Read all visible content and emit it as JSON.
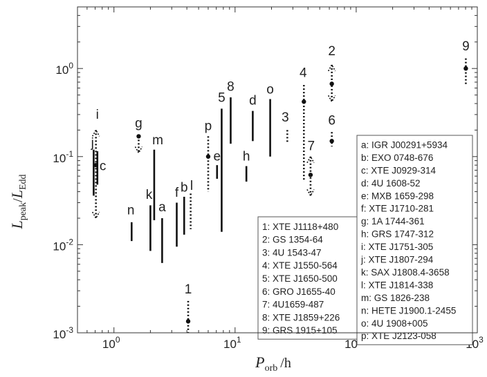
{
  "chart_data": {
    "type": "scatter",
    "xscale": "log",
    "yscale": "log",
    "xlim": [
      0.5,
      1000
    ],
    "ylim": [
      0.001,
      5
    ],
    "xlabel": {
      "main": "P",
      "sub": "orb",
      "unit": "/h"
    },
    "ylabel": {
      "num": "L",
      "num_sub": "peak",
      "sep": "/",
      "den": "L",
      "den_sub": "Edd"
    },
    "x_ticks": [
      {
        "value": 1,
        "base": "10",
        "exp": "0"
      },
      {
        "value": 10,
        "base": "10",
        "exp": "1"
      },
      {
        "value": 100,
        "base": "10",
        "exp": "2"
      },
      {
        "value": 1000,
        "base": "10",
        "exp": "3"
      }
    ],
    "y_ticks": [
      {
        "value": 0.001,
        "base": "10",
        "exp": "-3"
      },
      {
        "value": 0.01,
        "base": "10",
        "exp": "-2"
      },
      {
        "value": 0.1,
        "base": "10",
        "exp": "-1"
      },
      {
        "value": 1,
        "base": "10",
        "exp": "0"
      }
    ],
    "grid": false,
    "sources": [
      {
        "label": "a",
        "x": 2.5,
        "y_low": 0.0062,
        "y_high": 0.02,
        "style": "solid"
      },
      {
        "label": "b",
        "x": 3.8,
        "y_low": 0.013,
        "y_high": 0.035,
        "style": "solid"
      },
      {
        "label": "c",
        "x": 0.73,
        "y_low": 0.048,
        "y_high": 0.115,
        "style": "solid"
      },
      {
        "label": "d",
        "x": 14,
        "y_low": 0.15,
        "y_high": 0.33,
        "style": "solid"
      },
      {
        "label": "e",
        "x": 7.1,
        "y_low": 0.056,
        "y_high": 0.08,
        "style": "solid"
      },
      {
        "label": "f",
        "x": 3.3,
        "y_low": 0.0095,
        "y_high": 0.03,
        "style": "solid"
      },
      {
        "label": "g",
        "x": 1.6,
        "y_low": 0.11,
        "y_high": 0.17,
        "style": "dotted",
        "point": 0.17,
        "arrow": "down"
      },
      {
        "label": "h",
        "x": 12.4,
        "y_low": 0.052,
        "y_high": 0.078,
        "style": "solid"
      },
      {
        "label": "i",
        "x": 0.71,
        "y_low": 0.02,
        "y_high": 0.2,
        "style": "dotted",
        "point": 0.08,
        "arrow": "both"
      },
      {
        "label": "j",
        "x": 0.68,
        "y_low": 0.036,
        "y_high": 0.12,
        "style": "solid"
      },
      {
        "label": "k",
        "x": 2.0,
        "y_low": 0.0085,
        "y_high": 0.028,
        "style": "solid"
      },
      {
        "label": "l",
        "x": 4.3,
        "y_low": 0.015,
        "y_high": 0.038,
        "style": "dotted"
      },
      {
        "label": "m",
        "x": 2.15,
        "y_low": 0.019,
        "y_high": 0.12,
        "style": "solid"
      },
      {
        "label": "n",
        "x": 1.4,
        "y_low": 0.011,
        "y_high": 0.018,
        "style": "solid"
      },
      {
        "label": "o",
        "x": 19.5,
        "y_low": 0.1,
        "y_high": 0.45,
        "style": "solid"
      },
      {
        "label": "p",
        "x": 6.0,
        "y_low": 0.04,
        "y_high": 0.17,
        "style": "dotted",
        "point": 0.1
      },
      {
        "label": "1",
        "x": 4.1,
        "y_low": 0.001,
        "y_high": 0.0023,
        "style": "dotted",
        "point": 0.00135,
        "extend_bottom": true
      },
      {
        "label": "2",
        "x": 62.9,
        "y_low": 0.42,
        "y_high": 1.1,
        "style": "dotted",
        "point": 0.67,
        "arrow": "both"
      },
      {
        "label": "3",
        "x": 27,
        "y_low": 0.14,
        "y_high": 0.2,
        "style": "dotted"
      },
      {
        "label": "4",
        "x": 37,
        "y_low": 0.052,
        "y_high": 0.65,
        "style": "dotted",
        "point": 0.42
      },
      {
        "label": "5",
        "x": 7.75,
        "y_low": 0.014,
        "y_high": 0.35,
        "style": "solid"
      },
      {
        "label": "6",
        "x": 62.9,
        "y_low": 0.13,
        "y_high": 0.19,
        "style": "dotted",
        "point": 0.15
      },
      {
        "label": "7",
        "x": 42,
        "y_low": 0.036,
        "y_high": 0.1,
        "style": "dotted",
        "point": 0.062,
        "arrow": "both"
      },
      {
        "label": "8",
        "x": 9.2,
        "y_low": 0.14,
        "y_high": 0.47,
        "style": "solid"
      },
      {
        "label": "9",
        "x": 804,
        "y_low": 0.65,
        "y_high": 1.3,
        "style": "dotted",
        "point": 1.0
      }
    ],
    "legend_numbers": [
      "1: XTE J1118+480",
      "2: GS 1354-64",
      "3: 4U 1543-47",
      "4: XTE J1550-564",
      "5: XTE J1650-500",
      "6: GRO J1655-40",
      "7: 4U1659-487",
      "8: XTE J1859+226",
      "9: GRS 1915+105"
    ],
    "legend_letters": [
      "a: IGR J00291+5934",
      "b: EXO 0748-676",
      "c: XTE J0929-314",
      "d: 4U 1608-52",
      "e: MXB 1659-298",
      "f: XTE J1710-281",
      "g: 1A 1744-361",
      "h: GRS 1747-312",
      "i: XTE J1751-305",
      "j: XTE J1807-294",
      "k: SAX J1808.4-3658",
      "l: XTE J1814-338",
      "m: GS 1826-238",
      "n: HETE J1900.1-2455",
      "o: 4U 1908+005",
      "p: XTE J2123-058"
    ]
  }
}
